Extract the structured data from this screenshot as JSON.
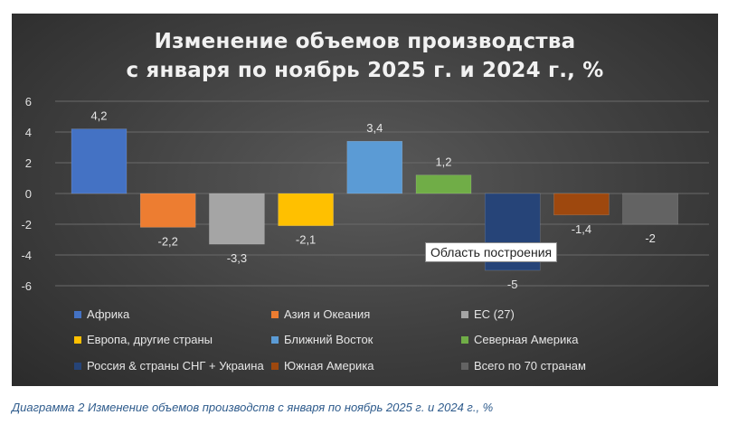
{
  "chart_data": {
    "type": "bar",
    "title": [
      "Изменение объемов производства",
      "с января по ноябрь 2025 г. и 2024 г., %"
    ],
    "ylim": [
      -6,
      6
    ],
    "yticks": [
      6,
      4,
      2,
      0,
      -2,
      -4,
      -6
    ],
    "grid": true,
    "legend_position": "bottom",
    "series": [
      {
        "name": "Африка",
        "value": 4.2,
        "label": "4,2",
        "color": "#4472c4"
      },
      {
        "name": "Азия и Океания",
        "value": -2.2,
        "label": "-2,2",
        "color": "#ed7d31"
      },
      {
        "name": "ЕС (27)",
        "value": -3.3,
        "label": "-3,3",
        "color": "#a5a5a5"
      },
      {
        "name": "Европа, другие страны",
        "value": -2.1,
        "label": "-2,1",
        "color": "#ffc000"
      },
      {
        "name": "Ближний Восток",
        "value": 3.4,
        "label": "3,4",
        "color": "#5b9bd5"
      },
      {
        "name": "Северная Америка",
        "value": 1.2,
        "label": "1,2",
        "color": "#70ad47"
      },
      {
        "name": "Россия & страны СНГ + Украина",
        "value": -5,
        "label": "-5",
        "color": "#264478"
      },
      {
        "name": "Южная Америка",
        "value": -1.4,
        "label": "-1,4",
        "color": "#9e480e"
      },
      {
        "name": "Всего по 70 странам",
        "value": -2,
        "label": "-2",
        "color": "#636363"
      }
    ]
  },
  "tooltip": "Область построения",
  "caption": "Диаграмма 2 Изменение объемов производств с января по ноябрь 2025 г. и 2024 г., %"
}
